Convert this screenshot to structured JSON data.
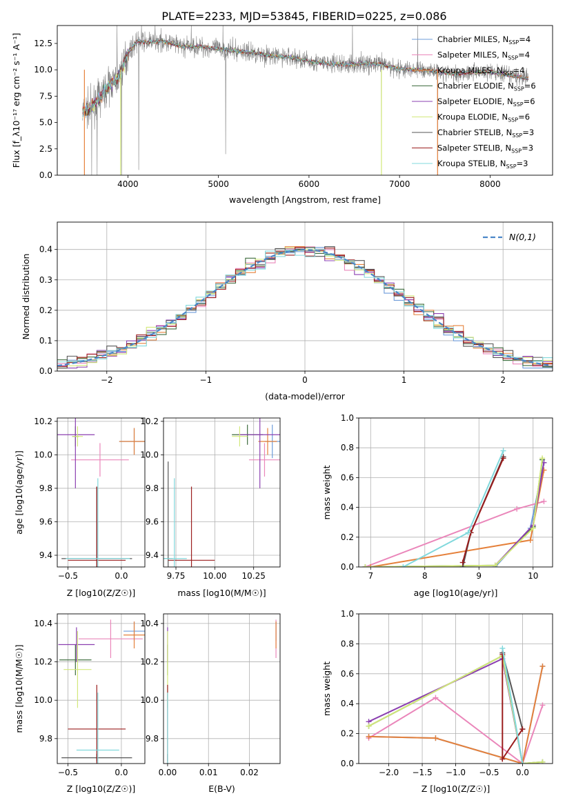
{
  "figure_title": "PLATE=2233, MJD=53845, FIBERID=0225, z=0.086",
  "colors": {
    "cM": "#6d9bd9",
    "sM": "#ea86ba",
    "kM": "#e5803a",
    "cE": "#3d6b3d",
    "sE": "#8b3fb0",
    "kE": "#d2e87a",
    "cS": "#555555",
    "sS": "#9a1c1c",
    "kS": "#80d8dc"
  },
  "chart_data": [
    {
      "id": "spectrum",
      "type": "line",
      "title": "PLATE=2233, MJD=53845, FIBERID=0225, z=0.086",
      "xlabel": "wavelength [Angstrom, rest frame]",
      "ylabel": "Flux [f_λ10⁻¹⁷ erg cm⁻² s⁻¹ A⁻¹]",
      "xlim": [
        3220,
        8690
      ],
      "ylim": [
        0,
        14.2
      ],
      "xticks": [
        4000,
        5000,
        6000,
        7000,
        8000
      ],
      "yticks": [
        0,
        2.5,
        5,
        7.5,
        10,
        12.5
      ],
      "ytick_labels": [
        "0.0",
        "2.5",
        "5.0",
        "7.5",
        "10.0",
        "12.5"
      ],
      "legend_position": "top-right",
      "legend": [
        {
          "label": "Chabrier MILES, N",
          "sub": "SSP",
          "tail": "=4",
          "color": "#6d9bd9"
        },
        {
          "label": "Salpeter MILES, N",
          "sub": "SSP",
          "tail": "=4",
          "color": "#ea86ba"
        },
        {
          "label": "Kroupa MILES, N",
          "sub": "SSP",
          "tail": "=4",
          "color": "#e5803a"
        },
        {
          "label": "Chabrier ELODIE, N",
          "sub": "SSP",
          "tail": "=6",
          "color": "#3d6b3d"
        },
        {
          "label": "Salpeter ELODIE, N",
          "sub": "SSP",
          "tail": "=6",
          "color": "#8b3fb0"
        },
        {
          "label": "Kroupa ELODIE, N",
          "sub": "SSP",
          "tail": "=6",
          "color": "#d2e87a"
        },
        {
          "label": "Chabrier STELIB, N",
          "sub": "SSP",
          "tail": "=3",
          "color": "#555555"
        },
        {
          "label": "Salpeter STELIB, N",
          "sub": "SSP",
          "tail": "=3",
          "color": "#9a1c1c"
        },
        {
          "label": "Kroupa STELIB, N",
          "sub": "SSP",
          "tail": "=3",
          "color": "#80d8dc"
        }
      ],
      "continuum": [
        [
          3500,
          6.0
        ],
        [
          3600,
          6.4
        ],
        [
          3700,
          7.5
        ],
        [
          3800,
          8.6
        ],
        [
          3900,
          9.3
        ],
        [
          4000,
          11.6
        ],
        [
          4100,
          12.7
        ],
        [
          4200,
          12.6
        ],
        [
          4400,
          12.7
        ],
        [
          4600,
          12.2
        ],
        [
          4800,
          12.2
        ],
        [
          5000,
          12.0
        ],
        [
          5200,
          11.8
        ],
        [
          5400,
          11.6
        ],
        [
          5600,
          11.3
        ],
        [
          5800,
          11.2
        ],
        [
          6000,
          10.8
        ],
        [
          6200,
          10.6
        ],
        [
          6400,
          10.5
        ],
        [
          6600,
          10.6
        ],
        [
          6800,
          10.5
        ],
        [
          7000,
          10.1
        ],
        [
          7200,
          10.0
        ],
        [
          7400,
          9.9
        ],
        [
          7600,
          9.6
        ],
        [
          7800,
          9.8
        ],
        [
          8000,
          9.8
        ],
        [
          8200,
          9.5
        ],
        [
          8400,
          9.2
        ]
      ],
      "noisy_data": {
        "series": "observed",
        "color": "#808080",
        "noise_amplitude": 0.9,
        "deep_spikes": [
          [
            3600,
            0
          ],
          [
            3660,
            0
          ],
          [
            3930,
            0
          ],
          [
            4120,
            0.5
          ],
          [
            5080,
            2.0
          ],
          [
            6800,
            0
          ],
          [
            7420,
            0
          ]
        ],
        "high_spikes": [
          [
            3880,
            14.2
          ],
          [
            4150,
            14.2
          ],
          [
            4300,
            14.2
          ],
          [
            4700,
            14.2
          ],
          [
            5050,
            14.2
          ],
          [
            6480,
            14.2
          ],
          [
            7200,
            14.2
          ]
        ]
      }
    },
    {
      "id": "residuals",
      "type": "step",
      "xlabel": "(data-model)/error",
      "ylabel": "Normed distribution",
      "xlim": [
        -2.5,
        2.5
      ],
      "ylim": [
        0,
        0.49
      ],
      "xticks": [
        -2,
        -1,
        0,
        1,
        2
      ],
      "xtick_labels": [
        "−2",
        "−1",
        "0",
        "1",
        "2"
      ],
      "yticks": [
        0,
        0.1,
        0.2,
        0.3,
        0.4
      ],
      "ytick_labels": [
        "0.0",
        "0.1",
        "0.2",
        "0.3",
        "0.4"
      ],
      "legend": [
        {
          "label": "N(0,1)",
          "color": "#4a86c8"
        }
      ],
      "legend_position": "top-right",
      "bin_width": 0.1,
      "bin_start": -2.5,
      "gaussian": {
        "mean": 0,
        "sigma": 1
      }
    },
    {
      "id": "age_vs_Z",
      "type": "errorbar",
      "xlabel": "Z [log10(Z/Z☉)]",
      "ylabel": "age  [log10(age/yr)]",
      "xlim": [
        -0.6,
        0.22
      ],
      "ylim": [
        9.33,
        10.22
      ],
      "xticks": [
        -0.5,
        0.0
      ],
      "xtick_labels": [
        "−0.5",
        "0.0"
      ],
      "yticks": [
        9.4,
        9.6,
        9.8,
        10.0,
        10.2
      ],
      "ytick_labels": [
        "9.4",
        "9.6",
        "9.8",
        "10.0",
        "10.2"
      ],
      "points": [
        {
          "key": "cM",
          "x": 0.12,
          "y": 10.08,
          "xerr": 0.14,
          "yerr": 0.08
        },
        {
          "key": "sM",
          "x": -0.2,
          "y": 9.97,
          "xerr": 0.27,
          "yerr": 0.1
        },
        {
          "key": "kM",
          "x": 0.12,
          "y": 10.08,
          "xerr": 0.14,
          "yerr": 0.08
        },
        {
          "key": "cE",
          "x": -0.43,
          "y": 10.11,
          "xerr": 0.03,
          "yerr": 0.06
        },
        {
          "key": "sE",
          "x": -0.43,
          "y": 10.12,
          "xerr": 0.18,
          "yerr": 0.32
        },
        {
          "key": "kE",
          "x": -0.41,
          "y": 10.11,
          "xerr": 0.05,
          "yerr": 0.06
        },
        {
          "key": "cS",
          "x": -0.23,
          "y": 9.38,
          "xerr": 0.33,
          "yerr": 0.43
        },
        {
          "key": "sS",
          "x": -0.23,
          "y": 9.37,
          "xerr": 0.27,
          "yerr": 0.44
        },
        {
          "key": "kS",
          "x": -0.22,
          "y": 9.38,
          "xerr": 0.3,
          "yerr": 0.48
        }
      ]
    },
    {
      "id": "age_vs_mass",
      "type": "errorbar",
      "xlabel": "mass [log10(M/M☉)]",
      "ylabel": "",
      "xlim": [
        9.67,
        10.42
      ],
      "ylim": [
        9.33,
        10.22
      ],
      "xticks": [
        9.75,
        10.0,
        10.25
      ],
      "xtick_labels": [
        "9.75",
        "10.00",
        "10.25"
      ],
      "yticks": [
        9.4,
        9.6,
        9.8,
        10.0,
        10.2
      ],
      "ytick_labels": [
        "9.4",
        "9.6",
        "9.8",
        "10.0",
        "10.2"
      ],
      "points": [
        {
          "key": "cM",
          "x": 10.37,
          "y": 10.08,
          "xerr": 0.05,
          "yerr": 0.1
        },
        {
          "key": "sM",
          "x": 10.32,
          "y": 9.97,
          "xerr": 0.1,
          "yerr": 0.1
        },
        {
          "key": "kM",
          "x": 10.34,
          "y": 10.08,
          "xerr": 0.06,
          "yerr": 0.08
        },
        {
          "key": "cE",
          "x": 10.21,
          "y": 10.12,
          "xerr": 0.1,
          "yerr": 0.06
        },
        {
          "key": "sE",
          "x": 10.29,
          "y": 10.12,
          "xerr": 0.14,
          "yerr": 0.32
        },
        {
          "key": "kE",
          "x": 10.16,
          "y": 10.11,
          "xerr": 0.05,
          "yerr": 0.06
        },
        {
          "key": "cS",
          "x": 9.7,
          "y": 9.38,
          "xerr": 0.03,
          "yerr": 0.58
        },
        {
          "key": "sS",
          "x": 9.85,
          "y": 9.37,
          "xerr": 0.15,
          "yerr": 0.44
        },
        {
          "key": "kS",
          "x": 9.74,
          "y": 9.38,
          "xerr": 0.08,
          "yerr": 0.48
        }
      ]
    },
    {
      "id": "mw_vs_age",
      "type": "line",
      "xlabel": "age  [log10(age/yr)]",
      "ylabel": "mass weight",
      "xlim": [
        6.78,
        10.36
      ],
      "ylim": [
        0,
        1
      ],
      "xticks": [
        7,
        8,
        9,
        10
      ],
      "xtick_labels": [
        "7",
        "8",
        "9",
        "10"
      ],
      "yticks": [
        0,
        0.2,
        0.4,
        0.6,
        0.8,
        1.0
      ],
      "ytick_labels": [
        "0.0",
        "0.2",
        "0.4",
        "0.6",
        "0.8",
        "1.0"
      ],
      "series": [
        {
          "key": "cM",
          "x": [
            9.3,
            9.95,
            10.2
          ],
          "y": [
            0.0,
            0.26,
            0.7
          ]
        },
        {
          "key": "sM",
          "x": [
            6.9,
            9.7,
            10.2
          ],
          "y": [
            0.0,
            0.39,
            0.44
          ]
        },
        {
          "key": "kM",
          "x": [
            7.0,
            9.95,
            10.2
          ],
          "y": [
            0.0,
            0.18,
            0.65
          ]
        },
        {
          "key": "cE",
          "x": [
            6.9,
            9.3,
            10.0,
            10.17
          ],
          "y": [
            0.0,
            0.01,
            0.27,
            0.72
          ]
        },
        {
          "key": "sE",
          "x": [
            9.3,
            10.0,
            10.2
          ],
          "y": [
            0.01,
            0.28,
            0.7
          ]
        },
        {
          "key": "kE",
          "x": [
            6.9,
            9.3,
            10.0,
            10.17
          ],
          "y": [
            0.0,
            0.01,
            0.26,
            0.73
          ]
        },
        {
          "key": "cS",
          "x": [
            8.7,
            8.85,
            9.45
          ],
          "y": [
            0.0,
            0.23,
            0.74
          ]
        },
        {
          "key": "sS",
          "x": [
            8.7,
            8.85,
            9.45
          ],
          "y": [
            0.03,
            0.23,
            0.73
          ]
        },
        {
          "key": "kS",
          "x": [
            7.6,
            8.8,
            9.45
          ],
          "y": [
            0.0,
            0.23,
            0.78
          ]
        }
      ]
    },
    {
      "id": "mass_vs_Z",
      "type": "errorbar",
      "xlabel": "Z [log10(Z/Z☉)]",
      "ylabel": "mass [log10(M/M☉)]",
      "xlim": [
        -0.6,
        0.22
      ],
      "ylim": [
        9.67,
        10.45
      ],
      "xticks": [
        -0.5,
        0.0
      ],
      "xtick_labels": [
        "−0.5",
        "0.0"
      ],
      "yticks": [
        9.8,
        10.0,
        10.2,
        10.4
      ],
      "ytick_labels": [
        "9.8",
        "10.0",
        "10.2",
        "10.4"
      ],
      "points": [
        {
          "key": "cM",
          "x": 0.12,
          "y": 10.36,
          "xerr": 0.1,
          "yerr": 0.05
        },
        {
          "key": "sM",
          "x": -0.1,
          "y": 10.32,
          "xerr": 0.3,
          "yerr": 0.1
        },
        {
          "key": "kM",
          "x": 0.12,
          "y": 10.34,
          "xerr": 0.1,
          "yerr": 0.07
        },
        {
          "key": "cE",
          "x": -0.43,
          "y": 10.21,
          "xerr": 0.15,
          "yerr": 0.08
        },
        {
          "key": "sE",
          "x": -0.42,
          "y": 10.29,
          "xerr": 0.17,
          "yerr": 0.09
        },
        {
          "key": "kE",
          "x": -0.41,
          "y": 10.16,
          "xerr": 0.13,
          "yerr": 0.2
        },
        {
          "key": "cS",
          "x": -0.23,
          "y": 9.7,
          "xerr": 0.33,
          "yerr": 0.02
        },
        {
          "key": "sS",
          "x": -0.23,
          "y": 9.85,
          "xerr": 0.27,
          "yerr": 0.23
        },
        {
          "key": "kS",
          "x": -0.22,
          "y": 9.74,
          "xerr": 0.2,
          "yerr": 0.3
        }
      ]
    },
    {
      "id": "mass_vs_ebv",
      "type": "errorbar",
      "xlabel": "E(B-V)",
      "ylabel": "",
      "xlim": [
        -0.001,
        0.0275
      ],
      "ylim": [
        9.67,
        10.45
      ],
      "xticks": [
        0.0,
        0.01,
        0.02
      ],
      "xtick_labels": [
        "0.00",
        "0.01",
        "0.02"
      ],
      "yticks": [
        9.8,
        10.0,
        10.2,
        10.4
      ],
      "ytick_labels": [
        "9.8",
        "10.0",
        "10.2",
        "10.4"
      ],
      "points": [
        {
          "key": "cM",
          "x": 0.0265,
          "y": 10.36,
          "xerr": 0.0,
          "yerr": 0.05
        },
        {
          "key": "sM",
          "x": 0.0265,
          "y": 10.32,
          "xerr": 0.0,
          "yerr": 0.1
        },
        {
          "key": "kM",
          "x": 0.0265,
          "y": 10.34,
          "xerr": 0.0,
          "yerr": 0.07
        },
        {
          "key": "cE",
          "x": 0.0,
          "y": 10.21,
          "xerr": 0.0,
          "yerr": 0.08
        },
        {
          "key": "sE",
          "x": 0.0,
          "y": 10.29,
          "xerr": 0.0,
          "yerr": 0.09
        },
        {
          "key": "kE",
          "x": 0.0,
          "y": 10.16,
          "xerr": 0.0,
          "yerr": 0.2
        },
        {
          "key": "cS",
          "x": 0.0,
          "y": 9.7,
          "xerr": 0.0,
          "yerr": 0.02
        },
        {
          "key": "sS",
          "x": 0.0,
          "y": 9.85,
          "xerr": 0.0,
          "yerr": 0.23
        },
        {
          "key": "kS",
          "x": 0.0,
          "y": 9.74,
          "xerr": 0.0,
          "yerr": 0.3
        }
      ]
    },
    {
      "id": "mw_vs_Z",
      "type": "line",
      "xlabel": "Z [log10(Z/Z☉)]",
      "ylabel": "mass weight",
      "xlim": [
        -2.45,
        0.45
      ],
      "ylim": [
        0,
        1
      ],
      "xticks": [
        -2.0,
        -1.5,
        -1.0,
        -0.5,
        0.0
      ],
      "xtick_labels": [
        "−2.0",
        "−1.5",
        "−1.0",
        "−0.5",
        "0.0"
      ],
      "yticks": [
        0,
        0.2,
        0.4,
        0.6,
        0.8,
        1.0
      ],
      "ytick_labels": [
        "0.0",
        "0.2",
        "0.4",
        "0.6",
        "0.8",
        "1.0"
      ],
      "series": [
        {
          "key": "cM",
          "x": [
            -2.3,
            -1.3,
            0.0,
            0.3
          ],
          "y": [
            0.18,
            0.17,
            0.0,
            0.65
          ]
        },
        {
          "key": "sM",
          "x": [
            -2.3,
            -1.3,
            0.0,
            0.3
          ],
          "y": [
            0.17,
            0.44,
            0.0,
            0.39
          ]
        },
        {
          "key": "kM",
          "x": [
            -2.3,
            -1.3,
            0.0,
            0.3
          ],
          "y": [
            0.18,
            0.17,
            0.0,
            0.65
          ]
        },
        {
          "key": "cE",
          "x": [
            -2.3,
            -0.3,
            0.0,
            0.3
          ],
          "y": [
            0.25,
            0.72,
            0.0,
            0.01
          ]
        },
        {
          "key": "sE",
          "x": [
            -2.3,
            -0.3,
            0.0
          ],
          "y": [
            0.28,
            0.7,
            0.0
          ]
        },
        {
          "key": "kE",
          "x": [
            -2.3,
            -0.3,
            0.0,
            0.3
          ],
          "y": [
            0.25,
            0.72,
            0.0,
            0.01
          ]
        },
        {
          "key": "cS",
          "x": [
            -0.3,
            0.0
          ],
          "y": [
            0.74,
            0.23
          ]
        },
        {
          "key": "sS",
          "x": [
            -0.3,
            -0.3,
            0.0
          ],
          "y": [
            0.73,
            0.03,
            0.23
          ]
        },
        {
          "key": "kS",
          "x": [
            -0.3,
            0.0
          ],
          "y": [
            0.77,
            0.0
          ]
        }
      ]
    }
  ]
}
